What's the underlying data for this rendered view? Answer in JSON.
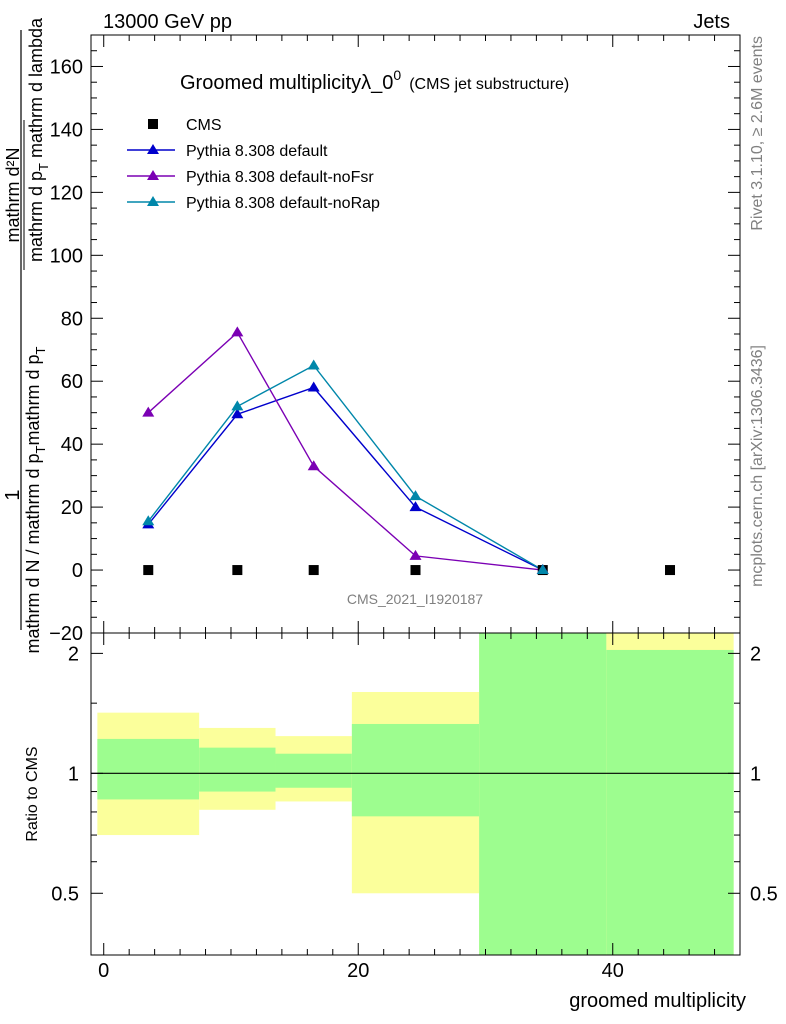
{
  "header": {
    "left": "13000 GeV pp",
    "right": "Jets"
  },
  "side_labels": {
    "rivet": "Rivet 3.1.10, ≥ 2.6M events",
    "mcplots": "mcplots.cern.ch [arXiv:1306.3436]"
  },
  "chart_data": [
    {
      "type": "line",
      "title": "Groomed multiplicityλ_0",
      "title_superscript": "0",
      "subtitle": "(CMS jet substructure)",
      "ylabel_numerator": "mathrm d²N",
      "ylabel_denominator_top": "mathrm d p",
      "ylabel_denominator_top_sub": "T",
      "ylabel_denominator_top_rest": " mathrm d lambda",
      "ylabel_one": "1",
      "ylabel_denominator_main": "mathrm d N / mathrm d p",
      "ylabel_denominator_main_sub": "T",
      "ylabel_denominator_main_rest": "mathrm d p",
      "ylabel_denominator_main_sub2": "T",
      "analysis_label": "CMS_2021_I1920187",
      "xlim": [
        -1,
        50
      ],
      "ylim": [
        -20,
        170
      ],
      "yticks": [
        -20,
        0,
        20,
        40,
        60,
        80,
        100,
        120,
        140,
        160
      ],
      "legend_position": "top-left",
      "series": [
        {
          "name": "CMS",
          "marker": "square",
          "color": "#000000",
          "x": [
            3.5,
            10.5,
            16.5,
            24.5,
            34.5,
            44.5
          ],
          "y": [
            0,
            0,
            0,
            0,
            0,
            0
          ]
        },
        {
          "name": "Pythia 8.308 default",
          "marker": "triangle",
          "color": "#0000cc",
          "x": [
            3.5,
            10.5,
            16.5,
            24.5,
            34.5
          ],
          "y": [
            14.5,
            49.5,
            58,
            20,
            0
          ]
        },
        {
          "name": "Pythia 8.308 default-noFsr",
          "marker": "triangle",
          "color": "#7b00b4",
          "x": [
            3.5,
            10.5,
            16.5,
            24.5,
            34.5
          ],
          "y": [
            50,
            75.5,
            33,
            4.5,
            0
          ]
        },
        {
          "name": "Pythia 8.308 default-noRap",
          "marker": "triangle",
          "color": "#0087aa",
          "x": [
            3.5,
            10.5,
            16.5,
            24.5,
            34.5
          ],
          "y": [
            15.5,
            52,
            65,
            23.5,
            0
          ]
        }
      ]
    },
    {
      "type": "area",
      "ylabel": "Ratio to CMS",
      "xlabel": "groomed multiplicity",
      "xlim": [
        -1,
        50
      ],
      "ylim": [
        0.35,
        2.25
      ],
      "yticks": [
        0.5,
        1,
        2
      ],
      "xticks": [
        0,
        20,
        40
      ],
      "reference_line": 1,
      "bands": [
        {
          "x0": -0.5,
          "x1": 7.5,
          "inner": [
            0.86,
            1.22
          ],
          "outer": [
            0.7,
            1.42
          ]
        },
        {
          "x0": 7.5,
          "x1": 13.5,
          "inner": [
            0.9,
            1.16
          ],
          "outer": [
            0.81,
            1.3
          ]
        },
        {
          "x0": 13.5,
          "x1": 19.5,
          "inner": [
            0.92,
            1.12
          ],
          "outer": [
            0.85,
            1.24
          ]
        },
        {
          "x0": 19.5,
          "x1": 29.5,
          "inner": [
            0.78,
            1.33
          ],
          "outer": [
            0.5,
            1.6
          ]
        },
        {
          "x0": 29.5,
          "x1": 39.5,
          "inner": [
            0.35,
            2.25
          ],
          "outer": [
            0.35,
            2.25
          ]
        },
        {
          "x0": 39.5,
          "x1": 49.5,
          "inner": [
            0.35,
            2.04
          ],
          "outer": [
            0.35,
            2.25
          ]
        }
      ],
      "colors": {
        "inner": "#9dfd8f",
        "outer": "#fbff9b"
      }
    }
  ]
}
